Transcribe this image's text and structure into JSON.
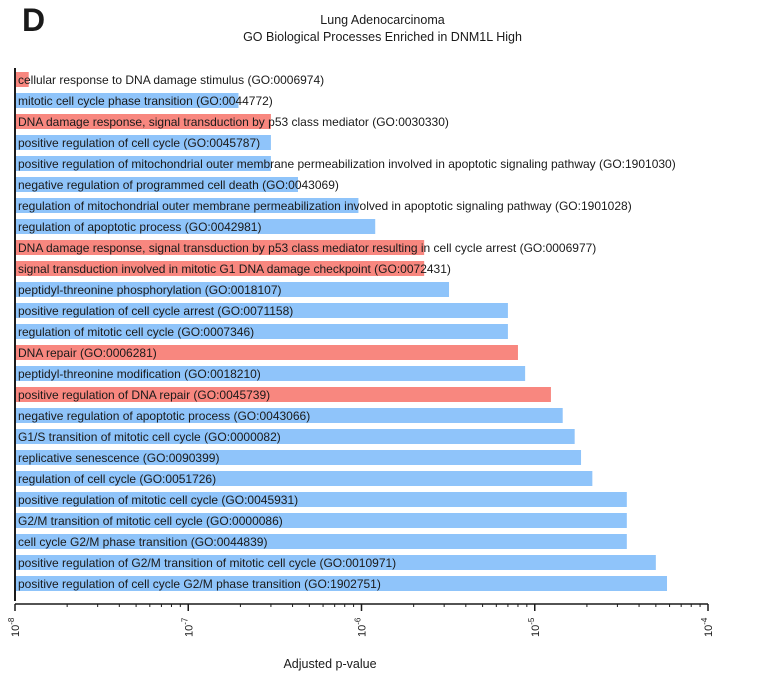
{
  "panel_label": "D",
  "colors": {
    "dna_damage": "#F8877F",
    "other": "#8FC4FA",
    "axis": "#1a1a1a"
  },
  "chart_data": {
    "type": "bar",
    "orientation": "horizontal",
    "title": "Lung Adenocarcinoma",
    "subtitle": "GO Biological Processes Enriched in DNM1L High",
    "xlabel": "Adjusted p-value",
    "x_scale": "log10",
    "xlim": [
      1e-08,
      0.0001
    ],
    "tick_labels": [
      {
        "value": 1e-08,
        "base": "10",
        "exp": "-8"
      },
      {
        "value": 1e-07,
        "base": "10",
        "exp": "-7"
      },
      {
        "value": 1e-06,
        "base": "10",
        "exp": "-6"
      },
      {
        "value": 1e-05,
        "base": "10",
        "exp": "-5"
      },
      {
        "value": 0.0001,
        "base": "10",
        "exp": "-4"
      }
    ],
    "grid": false,
    "bars": [
      {
        "label": "cellular response to DNA damage stimulus (GO:0006974)",
        "value": 1.2e-08,
        "group": "dna_damage"
      },
      {
        "label": "mitotic cell cycle phase transition (GO:0044772)",
        "value": 1.95e-07,
        "group": "other"
      },
      {
        "label": "DNA damage response, signal transduction by p53 class mediator (GO:0030330)",
        "value": 3e-07,
        "group": "dna_damage"
      },
      {
        "label": "positive regulation of cell cycle (GO:0045787)",
        "value": 3e-07,
        "group": "other"
      },
      {
        "label": "positive regulation of mitochondrial outer membrane permeabilization involved in apoptotic signaling pathway (GO:1901030)",
        "value": 3e-07,
        "group": "other"
      },
      {
        "label": "negative regulation of programmed cell death (GO:0043069)",
        "value": 4.3e-07,
        "group": "other"
      },
      {
        "label": "regulation of mitochondrial outer membrane permeabilization involved in apoptotic signaling pathway (GO:1901028)",
        "value": 9.6e-07,
        "group": "other"
      },
      {
        "label": "regulation of apoptotic process (GO:0042981)",
        "value": 1.2e-06,
        "group": "other"
      },
      {
        "label": "DNA damage response, signal transduction by p53 class mediator resulting in cell cycle arrest (GO:0006977)",
        "value": 2.3e-06,
        "group": "dna_damage"
      },
      {
        "label": "signal transduction involved in mitotic G1 DNA damage checkpoint (GO:0072431)",
        "value": 2.3e-06,
        "group": "dna_damage"
      },
      {
        "label": "peptidyl-threonine phosphorylation (GO:0018107)",
        "value": 3.2e-06,
        "group": "other"
      },
      {
        "label": "positive regulation of cell cycle arrest (GO:0071158)",
        "value": 7e-06,
        "group": "other"
      },
      {
        "label": "regulation of mitotic cell cycle (GO:0007346)",
        "value": 7e-06,
        "group": "other"
      },
      {
        "label": "DNA repair (GO:0006281)",
        "value": 8e-06,
        "group": "dna_damage"
      },
      {
        "label": "peptidyl-threonine modification (GO:0018210)",
        "value": 8.8e-06,
        "group": "other"
      },
      {
        "label": "positive regulation of DNA repair (GO:0045739)",
        "value": 1.24e-05,
        "group": "dna_damage"
      },
      {
        "label": "negative regulation of apoptotic process (GO:0043066)",
        "value": 1.45e-05,
        "group": "other"
      },
      {
        "label": "G1/S transition of mitotic cell cycle (GO:0000082)",
        "value": 1.7e-05,
        "group": "other"
      },
      {
        "label": "replicative senescence (GO:0090399)",
        "value": 1.85e-05,
        "group": "other"
      },
      {
        "label": "regulation of cell cycle (GO:0051726)",
        "value": 2.15e-05,
        "group": "other"
      },
      {
        "label": "positive regulation of mitotic cell cycle (GO:0045931)",
        "value": 3.4e-05,
        "group": "other"
      },
      {
        "label": "G2/M transition of mitotic cell cycle (GO:0000086)",
        "value": 3.4e-05,
        "group": "other"
      },
      {
        "label": "cell cycle G2/M phase transition (GO:0044839)",
        "value": 3.4e-05,
        "group": "other"
      },
      {
        "label": "positive regulation of G2/M transition of mitotic cell cycle (GO:0010971)",
        "value": 5e-05,
        "group": "other"
      },
      {
        "label": "positive regulation of cell cycle G2/M phase transition (GO:1902751)",
        "value": 5.8e-05,
        "group": "other"
      }
    ]
  }
}
